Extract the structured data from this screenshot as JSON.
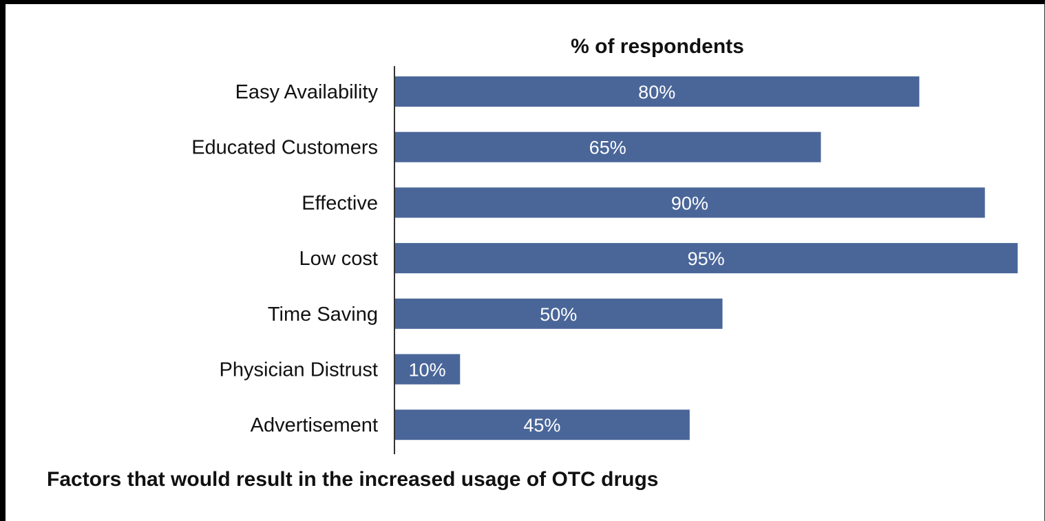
{
  "chart_data": {
    "type": "bar",
    "orientation": "horizontal",
    "title": "% of respondents",
    "caption": "Factors  that would result in the increased usage of OTC drugs",
    "categories": [
      "Easy Availability",
      "Educated Customers",
      "Effective",
      "Low cost",
      "Time Saving",
      "Physician Distrust",
      "Advertisement"
    ],
    "values": [
      80,
      65,
      90,
      95,
      50,
      10,
      45
    ],
    "value_labels": [
      "80%",
      "65%",
      "90%",
      "95%",
      "50%",
      "10%",
      "45%"
    ],
    "xlim": [
      0,
      100
    ],
    "grid": false,
    "legend": "none",
    "bar_color": "#4a6699"
  }
}
